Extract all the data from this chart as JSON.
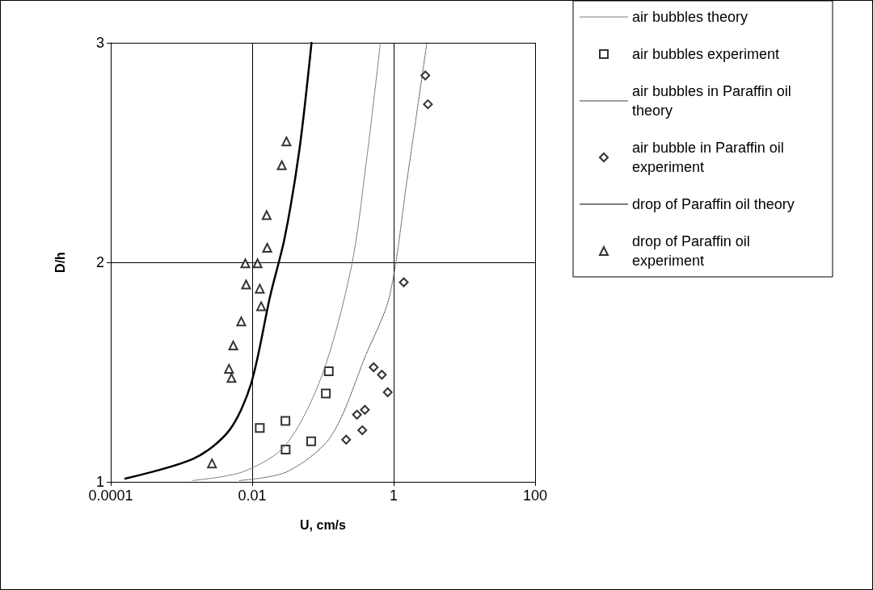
{
  "chart_data": {
    "type": "scatter",
    "xlabel": "U, cm/s",
    "ylabel": "D/h",
    "log": "x",
    "xlim": [
      0.0001,
      100
    ],
    "xticks": [
      0.0001,
      0.01,
      1,
      100
    ],
    "ylim": [
      1,
      3
    ],
    "yticks": [
      1,
      2,
      3
    ],
    "grid": true,
    "legend": "right",
    "series": [
      {
        "name": "air bubbles theory",
        "type": "line",
        "color": "#808080",
        "line_style": "solid",
        "marker": "none",
        "x": [
          0.00143,
          0.0074,
          0.0295,
          0.097,
          0.252,
          0.406,
          0.65
        ],
        "values": [
          1.006,
          1.046,
          1.166,
          1.485,
          1.978,
          2.445,
          3.0
        ]
      },
      {
        "name": "air bubbles experiment",
        "color": "#000000",
        "marker": "square",
        "x": [
          0.0128,
          0.0295,
          0.0297,
          0.0682,
          0.11,
          0.121
        ],
        "values": [
          1.245,
          1.278,
          1.147,
          1.185,
          1.403,
          1.504
        ]
      },
      {
        "name": "air bubbles in Paraffin oil theory",
        "type": "line",
        "color": "#404040",
        "line_style": "dotted",
        "marker": "none",
        "x": [
          0.0066,
          0.031,
          0.129,
          0.406,
          0.873,
          1.55,
          2.95
        ],
        "values": [
          1.006,
          1.046,
          1.206,
          1.579,
          1.845,
          2.378,
          3.0
        ]
      },
      {
        "name": "air bubble in Paraffin oil experiment",
        "color": "#000000",
        "marker": "diamond",
        "x": [
          2.8,
          3.05,
          1.39,
          0.521,
          0.681,
          0.824,
          0.392,
          0.303,
          0.36,
          0.213
        ],
        "values": [
          2.851,
          2.72,
          1.909,
          1.522,
          1.488,
          1.408,
          1.328,
          1.306,
          1.235,
          1.192
        ]
      },
      {
        "name": "drop of Paraffin oil theory",
        "type": "line",
        "color": "#000000",
        "line_style": "solid",
        "marker": "none",
        "x": [
          0.00016,
          0.00149,
          0.0047,
          0.0096,
          0.0179,
          0.0288,
          0.0464,
          0.069
        ],
        "values": [
          1.015,
          1.106,
          1.233,
          1.445,
          1.845,
          2.112,
          2.511,
          3.0
        ]
      },
      {
        "name": "drop of Paraffin oil experiment",
        "color": "#000000",
        "marker": "triangle",
        "x": [
          0.0027,
          0.0051,
          0.0047,
          0.0054,
          0.007,
          0.0082,
          0.008,
          0.0119,
          0.0128,
          0.0134,
          0.0163,
          0.016,
          0.0262,
          0.0305
        ],
        "values": [
          1.084,
          1.473,
          1.515,
          1.621,
          1.731,
          1.899,
          1.995,
          1.995,
          1.88,
          1.8,
          2.066,
          2.215,
          2.442,
          2.551
        ]
      }
    ]
  }
}
